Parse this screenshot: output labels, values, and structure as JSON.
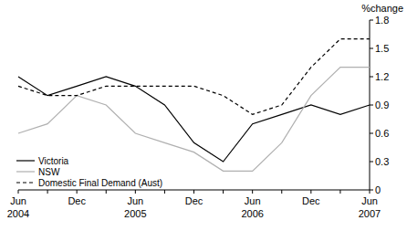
{
  "chart_data": {
    "type": "line",
    "y_label": "%change",
    "categories": [
      "Jun 2004",
      null,
      "Dec",
      null,
      "Jun 2005",
      null,
      "Dec",
      null,
      "Jun 2006",
      null,
      "Dec",
      null,
      "Jun 2007"
    ],
    "series": [
      {
        "name": "Victoria",
        "color": "#000000",
        "line_style": "solid",
        "values": [
          1.2,
          1.0,
          1.1,
          1.2,
          1.1,
          0.9,
          0.5,
          0.3,
          0.7,
          0.8,
          0.9,
          0.8,
          0.9
        ]
      },
      {
        "name": "NSW",
        "color": "#b0b0b0",
        "line_style": "solid",
        "values": [
          0.6,
          0.7,
          1.0,
          0.9,
          0.6,
          0.5,
          0.4,
          0.2,
          0.2,
          0.5,
          1.0,
          1.3,
          1.3
        ]
      },
      {
        "name": "Domestic Final Demand (Aust)",
        "color": "#000000",
        "line_style": "dashed",
        "values": [
          1.1,
          1.0,
          1.0,
          1.1,
          1.1,
          1.1,
          1.1,
          1.0,
          0.8,
          0.9,
          1.3,
          1.6,
          1.6
        ]
      }
    ],
    "ylim": [
      0,
      1.8
    ],
    "yticks": [
      0,
      0.3,
      0.6,
      0.9,
      1.2,
      1.5,
      1.8
    ],
    "grid": false,
    "legend": "bottom-left"
  }
}
